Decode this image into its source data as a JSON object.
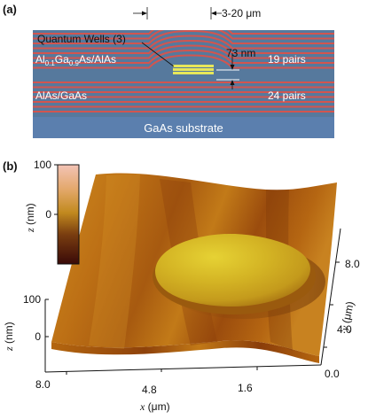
{
  "panel_a": {
    "label": "(a)",
    "quantum_wells": "Quantum Wells (3)",
    "width": "3-20 μm",
    "thickness": "73 nm",
    "mirror_top_material": {
      "p1": "Al",
      "s1": "0.1",
      "p2": "Ga",
      "s2": "0.9",
      "p3": "As/AlAs"
    },
    "mirror_top_pairs": "19 pairs",
    "mirror_bottom_material": "AlAs/GaAs",
    "mirror_bottom_pairs": "24 pairs",
    "substrate": "GaAs substrate",
    "colors": {
      "red_layer": "#d2554f",
      "blue_layer": "#56799d",
      "substrate": "#5b7fae",
      "well": "#e6e65a"
    }
  },
  "panel_b": {
    "label": "(b)",
    "colorbar": {
      "ticks": [
        "100",
        "0"
      ],
      "label_var": "z",
      "label_unit": " (nm)",
      "colors": [
        "#f3c4b6",
        "#e3a86a",
        "#c28a1f",
        "#7a3e10",
        "#3a0a08"
      ]
    },
    "z_axis": {
      "ticks": [
        "100",
        "0"
      ],
      "label_var": "z",
      "label_unit": " (nm)"
    },
    "x_axis": {
      "ticks": [
        "8.0",
        "4.8",
        "1.6"
      ],
      "label_var": "x",
      "label_unit": " (μm)"
    },
    "y_axis": {
      "ticks": [
        "0.0",
        "4.0",
        "8.0"
      ],
      "label_var": "y",
      "label_unit": " (μm)"
    },
    "surface_colors": {
      "base": "#b96812",
      "light": "#d89425",
      "dark": "#8a3e0c",
      "mesa": "#d8c224"
    }
  }
}
